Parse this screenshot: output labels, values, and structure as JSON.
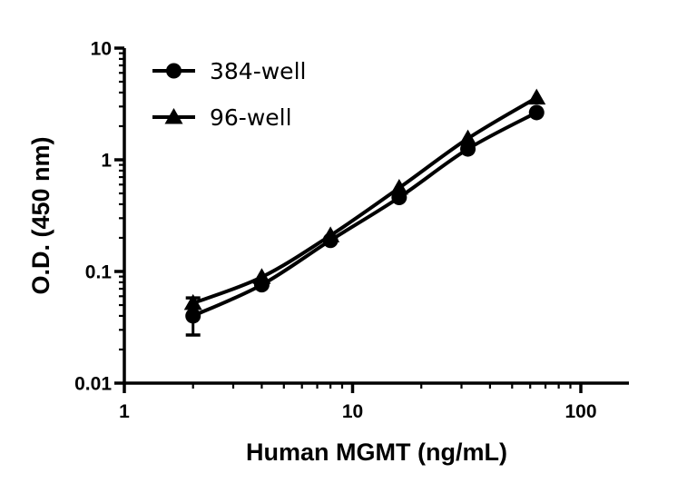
{
  "figure": {
    "background": "#ffffff",
    "foreground": "#000000"
  },
  "chart_data": {
    "type": "line",
    "x_scale": "log",
    "y_scale": "log",
    "title": "",
    "xlabel": "Human MGMT (ng/mL)",
    "ylabel": "O.D. (450 nm)",
    "xlim": [
      1,
      160
    ],
    "ylim": [
      0.01,
      10
    ],
    "x_tick_values": [
      1,
      10,
      100
    ],
    "x_tick_labels": [
      "1",
      "10",
      "100"
    ],
    "y_tick_values": [
      10,
      1,
      0.1,
      0.01
    ],
    "y_tick_labels": [
      "10",
      "1",
      "0.1",
      "0.01"
    ],
    "grid": false,
    "x": [
      2,
      4,
      8,
      16,
      32,
      64
    ],
    "series": [
      {
        "name": "384-well",
        "marker": "circle",
        "color": "#000000",
        "values": [
          0.04,
          0.076,
          0.19,
          0.46,
          1.25,
          2.65
        ],
        "error_bars": [
          {
            "x": 2,
            "low": 0.027,
            "high": 0.058
          }
        ]
      },
      {
        "name": "96-well",
        "marker": "triangle",
        "color": "#000000",
        "values": [
          0.052,
          0.089,
          0.21,
          0.56,
          1.55,
          3.6
        ],
        "error_bars": []
      }
    ],
    "legend": {
      "position": "top-left-inside",
      "entries": [
        "384-well",
        "96-well"
      ]
    }
  }
}
